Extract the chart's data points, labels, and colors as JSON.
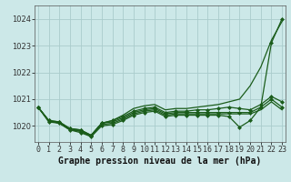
{
  "title": "Graphe pression niveau de la mer (hPa)",
  "background_color": "#cce8e8",
  "grid_color": "#aacccc",
  "line_color": "#1a5c1a",
  "x_ticks": [
    0,
    1,
    2,
    3,
    4,
    5,
    6,
    7,
    8,
    9,
    10,
    11,
    12,
    13,
    14,
    15,
    16,
    17,
    18,
    19,
    20,
    21,
    22,
    23
  ],
  "y_ticks": [
    1020,
    1021,
    1022,
    1023,
    1024
  ],
  "ylim": [
    1019.4,
    1024.5
  ],
  "xlim": [
    -0.3,
    23.3
  ],
  "series": [
    [
      1020.7,
      1020.2,
      1020.15,
      1019.9,
      1019.85,
      1019.65,
      1020.1,
      1020.15,
      1020.3,
      1020.5,
      1020.6,
      1020.65,
      1020.45,
      1020.5,
      1020.5,
      1020.5,
      1020.5,
      1020.5,
      1020.5,
      1020.5,
      1020.5,
      1020.7,
      1021.0,
      1020.7
    ],
    [
      1020.7,
      1020.2,
      1020.15,
      1019.9,
      1019.85,
      1019.65,
      1020.1,
      1020.2,
      1020.35,
      1020.55,
      1020.65,
      1020.7,
      1020.5,
      1020.55,
      1020.55,
      1020.6,
      1020.6,
      1020.65,
      1020.7,
      1020.65,
      1020.6,
      1020.8,
      1021.1,
      1020.9
    ],
    [
      1020.7,
      1020.2,
      1020.1,
      1019.85,
      1019.8,
      1019.6,
      1020.05,
      1020.1,
      1020.25,
      1020.45,
      1020.55,
      1020.6,
      1020.4,
      1020.45,
      1020.45,
      1020.45,
      1020.45,
      1020.45,
      1020.45,
      1020.45,
      1020.45,
      1020.6,
      1020.9,
      1020.6
    ],
    [
      1020.7,
      1020.2,
      1020.1,
      1019.9,
      1019.8,
      1019.65,
      1020.1,
      1020.2,
      1020.4,
      1020.65,
      1020.75,
      1020.8,
      1020.6,
      1020.65,
      1020.65,
      1020.7,
      1020.75,
      1020.8,
      1020.9,
      1021.0,
      1021.5,
      1022.2,
      1023.2,
      1023.9
    ],
    [
      1020.7,
      1020.15,
      1020.1,
      1019.85,
      1019.75,
      1019.6,
      1020.0,
      1020.05,
      1020.2,
      1020.4,
      1020.5,
      1020.55,
      1020.35,
      1020.4,
      1020.4,
      1020.4,
      1020.4,
      1020.4,
      1020.35,
      1019.95,
      1020.2,
      1020.7,
      1023.1,
      1024.0
    ]
  ],
  "series_has_markers": [
    true,
    true,
    false,
    false,
    true
  ],
  "marker_symbol": "D",
  "marker_size": 2.0,
  "linewidth": 0.9,
  "title_fontsize": 7.0,
  "tick_fontsize": 6.0,
  "tick_color": "#333333"
}
